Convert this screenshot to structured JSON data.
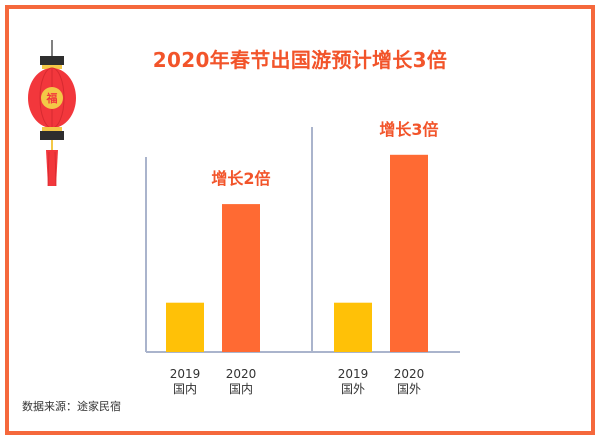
{
  "title": "2020年春节出国游预计增长3倍",
  "source": "数据来源：途家民宿",
  "lantern": {
    "icon": "lantern-icon",
    "glyph": "福"
  },
  "colors": {
    "border": "#f5683c",
    "title": "#f2542a",
    "bar_2019": "#ffc107",
    "bar_2020": "#ff6a33",
    "axis": "#aab4cc",
    "lantern_body": "#f2373c",
    "lantern_gold": "#f3c847",
    "lantern_cap": "#2e2e2e"
  },
  "chart_data": {
    "type": "bar",
    "ylim": [
      0,
      4.3
    ],
    "groups": [
      {
        "name": "国内",
        "annotation": "增长2倍",
        "bars": [
          {
            "year": "2019",
            "region": "国内",
            "value": 1
          },
          {
            "year": "2020",
            "region": "国内",
            "value": 3
          }
        ]
      },
      {
        "name": "国外",
        "annotation": "增长3倍",
        "bars": [
          {
            "year": "2019",
            "region": "国外",
            "value": 1
          },
          {
            "year": "2020",
            "region": "国外",
            "value": 4
          }
        ]
      }
    ],
    "grid": false,
    "legend": "none"
  }
}
